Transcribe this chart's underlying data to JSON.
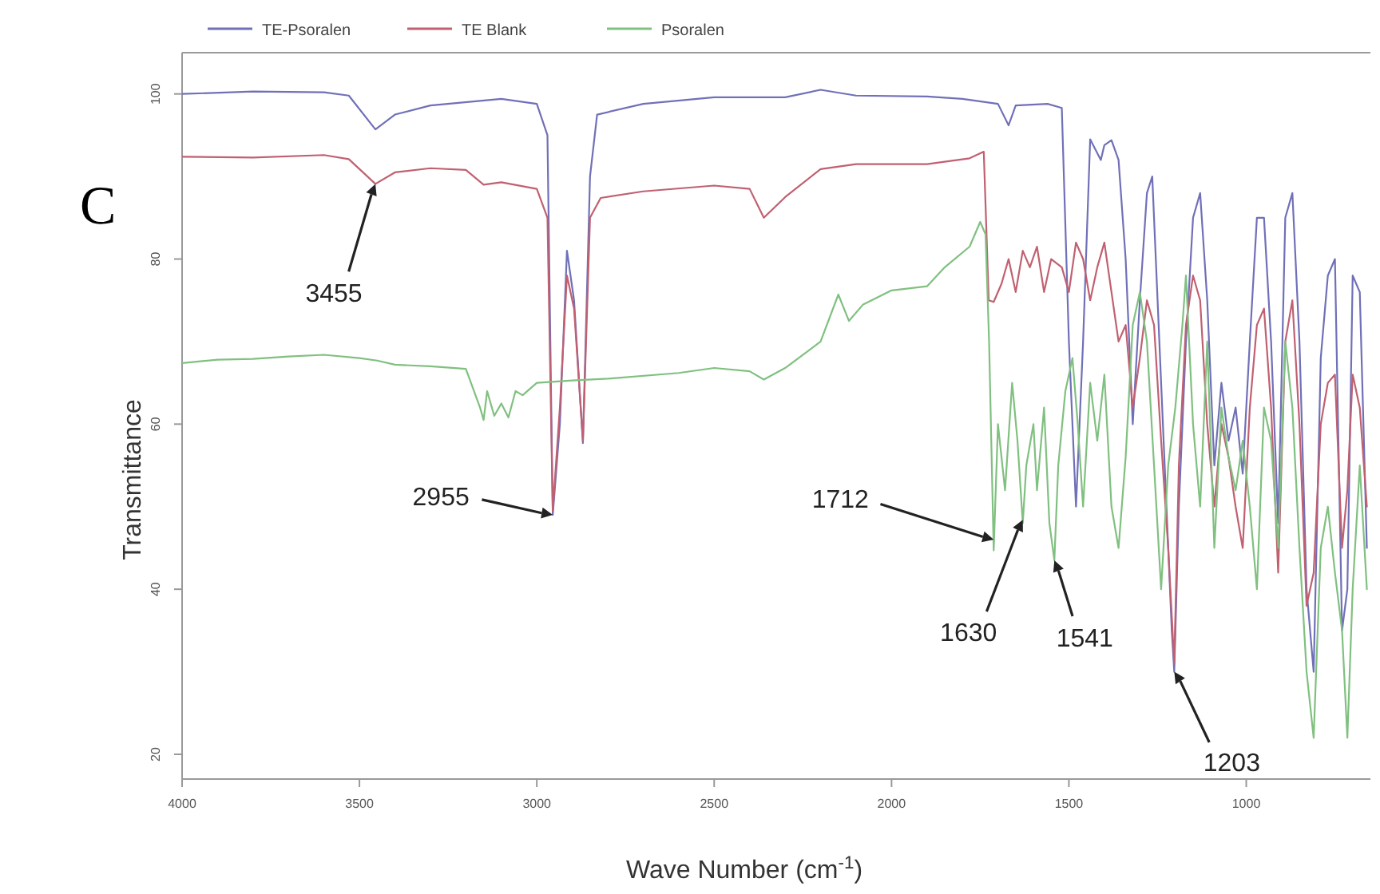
{
  "chart_data": {
    "type": "line",
    "xlabel": "Wave Number (cm$^{-1}$)",
    "ylabel": "Transmittance",
    "xlim": [
      4000,
      650
    ],
    "ylim": [
      17,
      105
    ],
    "xticks": [
      4000,
      3500,
      3000,
      2500,
      2000,
      1500,
      1000
    ],
    "yticks": [
      20,
      40,
      60,
      80,
      100
    ],
    "legend": "top",
    "grid": false,
    "marker": "none",
    "line_style": "solid",
    "annotations": [
      "C",
      {
        "text": "3455",
        "x": 3455,
        "y": 89.1
      },
      {
        "text": "2955",
        "x": 2955,
        "y": 49
      },
      {
        "text": "1712",
        "x": 1712,
        "y": 46
      },
      {
        "text": "1630",
        "x": 1630,
        "y": 48.4
      },
      {
        "text": "1541",
        "x": 1541,
        "y": 43.5
      },
      {
        "text": "1203",
        "x": 1203,
        "y": 30
      }
    ],
    "series": [
      {
        "name": "TE-Psoralen",
        "color": "#7070b8",
        "x": [
          4000,
          3800,
          3600,
          3530,
          3455,
          3400,
          3300,
          3100,
          3000,
          2970,
          2955,
          2935,
          2915,
          2895,
          2870,
          2850,
          2830,
          2700,
          2500,
          2300,
          2200,
          2100,
          1900,
          1800,
          1700,
          1670,
          1650,
          1560,
          1520,
          1500,
          1480,
          1460,
          1440,
          1410,
          1400,
          1380,
          1360,
          1340,
          1320,
          1300,
          1280,
          1265,
          1250,
          1230,
          1210,
          1203,
          1190,
          1170,
          1150,
          1130,
          1110,
          1090,
          1070,
          1050,
          1030,
          1010,
          990,
          970,
          950,
          930,
          910,
          890,
          870,
          850,
          830,
          810,
          790,
          770,
          750,
          730,
          715,
          700,
          680,
          660
        ],
        "values": [
          100,
          100.3,
          100.2,
          99.8,
          95.7,
          97.5,
          98.6,
          99.4,
          98.8,
          95,
          49,
          60,
          81,
          75,
          57.7,
          90,
          97.5,
          98.8,
          99.6,
          99.6,
          100.5,
          99.8,
          99.7,
          99.4,
          98.8,
          96.2,
          98.6,
          98.8,
          98.3,
          70,
          50,
          70,
          94.5,
          92,
          93.8,
          94.4,
          92,
          80,
          60,
          75,
          88,
          90,
          75,
          55,
          35,
          30,
          50,
          70,
          85,
          88,
          75,
          55,
          65,
          58,
          62,
          54,
          70,
          85,
          85,
          70,
          48,
          85,
          88,
          70,
          40,
          30,
          68,
          78,
          80,
          35,
          40,
          78,
          76,
          45
        ]
      },
      {
        "name": "TE Blank",
        "color": "#c06070",
        "x": [
          4000,
          3800,
          3600,
          3530,
          3455,
          3400,
          3300,
          3200,
          3150,
          3100,
          3000,
          2970,
          2955,
          2935,
          2915,
          2895,
          2870,
          2850,
          2820,
          2700,
          2500,
          2400,
          2360,
          2300,
          2200,
          2100,
          1900,
          1780,
          1740,
          1726,
          1712,
          1690,
          1670,
          1650,
          1630,
          1610,
          1590,
          1570,
          1550,
          1520,
          1500,
          1480,
          1460,
          1440,
          1420,
          1400,
          1380,
          1360,
          1340,
          1320,
          1300,
          1280,
          1260,
          1240,
          1220,
          1203,
          1190,
          1170,
          1150,
          1130,
          1110,
          1090,
          1070,
          1050,
          1030,
          1010,
          990,
          970,
          950,
          930,
          910,
          890,
          870,
          850,
          830,
          810,
          790,
          770,
          750,
          730,
          715,
          700,
          680,
          660
        ],
        "values": [
          92.4,
          92.3,
          92.6,
          92.1,
          89.1,
          90.5,
          91,
          90.8,
          89,
          89.3,
          88.5,
          85,
          49.5,
          62,
          78,
          74,
          58,
          85,
          87.4,
          88.2,
          88.9,
          88.5,
          85,
          87.5,
          90.9,
          91.5,
          91.5,
          92.2,
          93,
          75,
          74.8,
          77,
          80,
          76,
          81,
          79,
          81.5,
          76,
          80,
          79,
          76,
          82,
          80,
          75,
          79,
          82,
          76,
          70,
          72,
          62,
          68,
          75,
          72,
          58,
          45,
          31,
          55,
          72,
          78,
          75,
          60,
          50,
          60,
          56,
          50,
          45,
          62,
          72,
          74,
          62,
          42,
          70,
          75,
          60,
          38,
          42,
          60,
          65,
          66,
          45,
          52,
          66,
          62,
          50
        ]
      },
      {
        "name": "Psoralen",
        "color": "#80c080",
        "x": [
          4000,
          3900,
          3800,
          3700,
          3600,
          3500,
          3450,
          3400,
          3300,
          3200,
          3160,
          3150,
          3140,
          3120,
          3100,
          3080,
          3060,
          3040,
          3000,
          2900,
          2800,
          2600,
          2500,
          2400,
          2360,
          2300,
          2200,
          2150,
          2120,
          2080,
          2000,
          1900,
          1850,
          1780,
          1750,
          1735,
          1725,
          1712,
          1700,
          1680,
          1660,
          1645,
          1630,
          1620,
          1600,
          1590,
          1570,
          1555,
          1541,
          1530,
          1510,
          1490,
          1475,
          1460,
          1440,
          1420,
          1400,
          1380,
          1360,
          1340,
          1320,
          1300,
          1280,
          1260,
          1240,
          1220,
          1200,
          1180,
          1170,
          1150,
          1130,
          1110,
          1090,
          1070,
          1050,
          1030,
          1010,
          990,
          970,
          950,
          930,
          910,
          890,
          870,
          850,
          830,
          810,
          790,
          770,
          750,
          730,
          715,
          700,
          680,
          660
        ],
        "values": [
          67.4,
          67.8,
          67.9,
          68.2,
          68.4,
          68,
          67.7,
          67.2,
          67,
          66.7,
          62,
          60.5,
          64,
          61,
          62.5,
          60.8,
          64,
          63.5,
          65,
          65.3,
          65.5,
          66.2,
          66.8,
          66.4,
          65.4,
          66.8,
          70,
          75.7,
          72.5,
          74.5,
          76.2,
          76.7,
          79,
          81.5,
          84.5,
          83,
          70,
          44.7,
          60,
          52,
          65,
          58,
          48,
          55,
          60,
          52,
          62,
          48,
          43.5,
          55,
          64,
          68,
          60,
          50,
          65,
          58,
          66,
          50,
          45,
          56,
          72,
          76,
          70,
          55,
          40,
          55,
          62,
          72,
          78,
          60,
          50,
          70,
          45,
          62,
          56,
          52,
          58,
          50,
          40,
          62,
          58,
          45,
          70,
          62,
          45,
          30,
          22,
          45,
          50,
          42,
          35,
          22,
          40,
          55,
          40
        ]
      }
    ]
  }
}
